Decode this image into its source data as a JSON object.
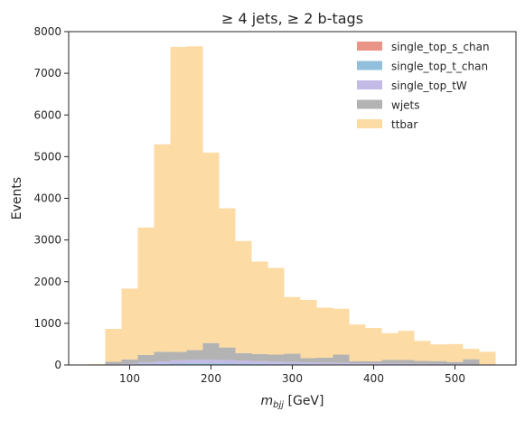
{
  "chart_data": {
    "type": "bar",
    "stacked": true,
    "histogram": true,
    "title": "≥ 4 jets, ≥ 2 b-tags",
    "xlabel": "m_bjj [GeV]",
    "xlabel_parts": {
      "var": "m",
      "sub": "bjj",
      "unit": " [GeV]"
    },
    "ylabel": "Events",
    "xlim": [
      25,
      575
    ],
    "ylim": [
      0,
      8000
    ],
    "xticks": [
      100,
      200,
      300,
      400,
      500
    ],
    "yticks": [
      0,
      1000,
      2000,
      3000,
      4000,
      5000,
      6000,
      7000,
      8000
    ],
    "grid": false,
    "legend_position": "top-right",
    "bin_edges": [
      50,
      70,
      90,
      110,
      130,
      150,
      170,
      190,
      210,
      230,
      250,
      270,
      290,
      310,
      330,
      350,
      370,
      390,
      410,
      430,
      450,
      470,
      490,
      510,
      530,
      550
    ],
    "series": [
      {
        "name": "single_top_s_chan",
        "color": "#e8877a",
        "values": [
          0,
          2,
          3,
          5,
          6,
          8,
          9,
          9,
          9,
          8,
          7,
          6,
          5,
          5,
          4,
          4,
          3,
          3,
          3,
          2,
          2,
          2,
          2,
          1,
          1
        ]
      },
      {
        "name": "single_top_t_chan",
        "color": "#85b8d8",
        "values": [
          0,
          5,
          10,
          15,
          20,
          25,
          28,
          28,
          26,
          22,
          20,
          18,
          15,
          13,
          12,
          10,
          9,
          8,
          7,
          6,
          6,
          5,
          5,
          4,
          4
        ]
      },
      {
        "name": "single_top_tW",
        "color": "#bdb3e3",
        "values": [
          0,
          10,
          20,
          40,
          60,
          80,
          90,
          90,
          85,
          75,
          65,
          55,
          50,
          45,
          40,
          35,
          30,
          27,
          24,
          21,
          19,
          17,
          15,
          13,
          12
        ]
      },
      {
        "name": "wjets",
        "color": "#ababab",
        "values": [
          0,
          60,
          100,
          180,
          230,
          200,
          230,
          400,
          300,
          180,
          170,
          170,
          200,
          100,
          120,
          200,
          50,
          50,
          90,
          90,
          70,
          70,
          50,
          120,
          0
        ]
      },
      {
        "name": "ttbar",
        "color": "#fcd79a",
        "values": [
          20,
          790,
          1700,
          3060,
          4980,
          7320,
          7290,
          4570,
          3340,
          2690,
          2220,
          2080,
          1360,
          1400,
          1200,
          1100,
          880,
          800,
          640,
          700,
          480,
          400,
          430,
          250,
          300
        ]
      }
    ]
  }
}
